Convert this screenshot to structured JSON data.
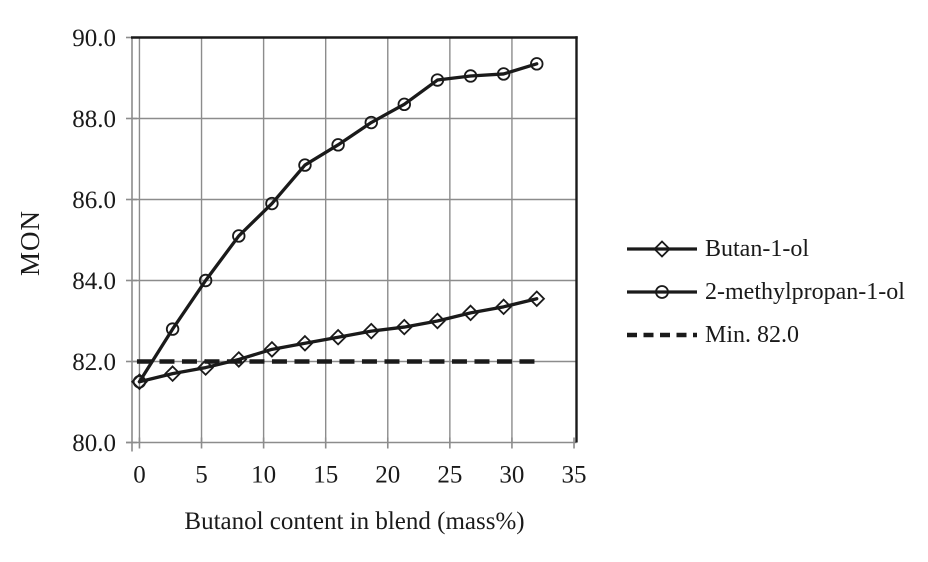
{
  "chart_data": {
    "type": "line",
    "title": "",
    "xlabel": "Butanol content in blend (mass%)",
    "ylabel": "MON",
    "xlim": [
      -0.6,
      35.2
    ],
    "ylim": [
      80,
      90
    ],
    "grid": true,
    "legend_position": "right",
    "x_ticks": {
      "values": [
        0,
        5,
        10,
        15,
        20,
        25,
        30,
        35
      ],
      "labels": [
        "0",
        "5",
        "10",
        "15",
        "20",
        "25",
        "30",
        "35"
      ]
    },
    "y_ticks": {
      "values": [
        90,
        88,
        86,
        84,
        82,
        80
      ],
      "labels": [
        "90.0",
        "88.0",
        "86.0",
        "84.0",
        "82.0",
        "80.0"
      ]
    },
    "x": [
      0,
      2.67,
      5.33,
      8.0,
      10.67,
      13.33,
      16.0,
      18.67,
      21.33,
      24.0,
      26.67,
      29.33,
      32.0
    ],
    "series": [
      {
        "name": "Butan-1-ol",
        "marker": "diamond",
        "line_style": "solid",
        "values": [
          81.5,
          81.7,
          81.85,
          82.05,
          82.3,
          82.45,
          82.6,
          82.75,
          82.85,
          83.0,
          83.2,
          83.35,
          83.55
        ]
      },
      {
        "name": "2-methylpropan-1-ol",
        "marker": "circle",
        "line_style": "solid",
        "values": [
          81.5,
          82.8,
          84.0,
          85.1,
          85.9,
          86.85,
          87.35,
          87.9,
          88.35,
          88.95,
          89.05,
          89.1,
          89.35
        ]
      }
    ],
    "reference_line": {
      "name": "Min. 82.0",
      "y": 82.0,
      "line_style": "dashed",
      "x_range": [
        -0.2,
        32.3
      ]
    },
    "colors": {
      "series": "#1a1a1a",
      "grid": "#8c8c8c",
      "axis": "#8c8c8c",
      "border": "#1a1a1a",
      "background": "#ffffff"
    }
  }
}
